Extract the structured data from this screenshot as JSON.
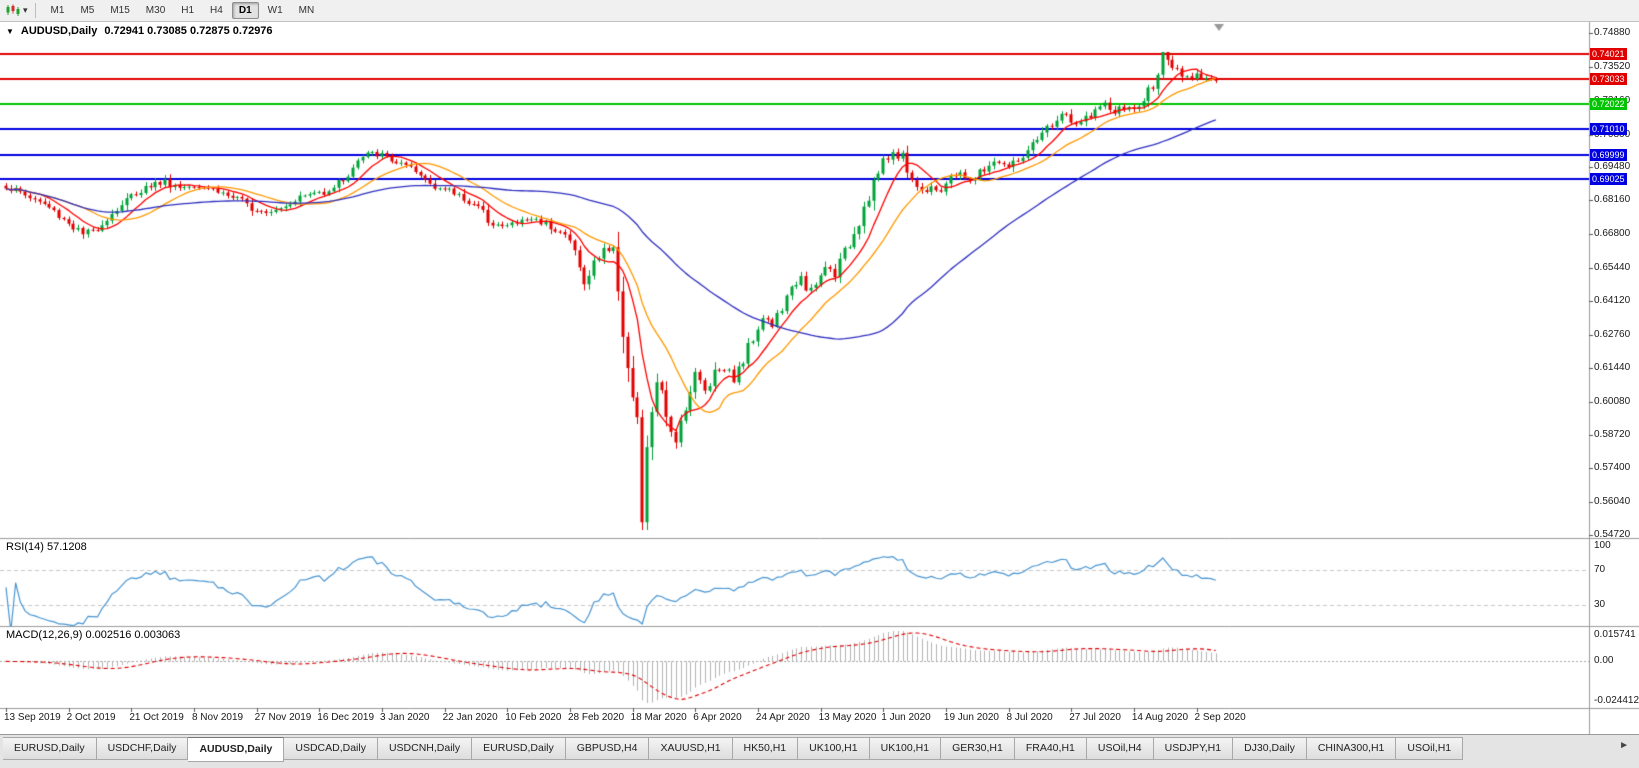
{
  "toolbar": {
    "timeframes": [
      "M1",
      "M5",
      "M15",
      "M30",
      "H1",
      "H4",
      "D1",
      "W1",
      "MN"
    ],
    "active_timeframe": "D1"
  },
  "icons": {
    "dropdown_caret": "▾",
    "collapse_triangle": "▼",
    "tab_scroll_right": "►"
  },
  "chart": {
    "title_symbol": "AUDUSD,Daily",
    "title_ohlc": "0.72941 0.73085 0.72875 0.72976"
  },
  "indicators": {
    "rsi_label": "RSI(14) 57.1208",
    "macd_label": "MACD(12,26,9) 0.002516 0.003063"
  },
  "tabs": {
    "active_index": 2,
    "items": [
      "EURUSD,Daily",
      "USDCHF,Daily",
      "AUDUSD,Daily",
      "USDCAD,Daily",
      "USDCNH,Daily",
      "EURUSD,Daily",
      "GBPUSD,H4",
      "XAUUSD,H1",
      "HK50,H1",
      "UK100,H1",
      "UK100,H1",
      "GER30,H1",
      "FRA40,H1",
      "USOil,H4",
      "USDJPY,H1",
      "DJ30,Daily",
      "CHINA300,H1",
      "USOil,H1"
    ]
  },
  "chart_data": {
    "type": "candlestick",
    "symbol": "AUDUSD",
    "period": "Daily",
    "current_bar": {
      "open": 0.72941,
      "high": 0.73085,
      "low": 0.72875,
      "close": 0.72976
    },
    "bar_count": 252,
    "bars_per_label": 13,
    "price_axis": {
      "top": 0.7488,
      "bottom": 0.5472,
      "ticks": [
        "0.74880",
        "0.73520",
        "0.72160",
        "0.70800",
        "0.69480",
        "0.68160",
        "0.66800",
        "0.65440",
        "0.64120",
        "0.62760",
        "0.61440",
        "0.60080",
        "0.58720",
        "0.57400",
        "0.56040",
        "0.54720"
      ]
    },
    "horizontal_levels": [
      {
        "price": 0.74021,
        "label": "0.74021",
        "color": "#e00000"
      },
      {
        "price": 0.73033,
        "label": "0.73033",
        "color": "#e00000"
      },
      {
        "price": 0.72022,
        "label": "0.72022",
        "color": "#00c400"
      },
      {
        "price": 0.7101,
        "label": "0.71010",
        "color": "#0000e0"
      },
      {
        "price": 0.69999,
        "label": "0.69999",
        "color": "#0000e0"
      },
      {
        "price": 0.69025,
        "label": "0.69025",
        "color": "#0000e0"
      }
    ],
    "moving_averages": [
      {
        "period": 8,
        "color": "#ff0000"
      },
      {
        "period": 17,
        "color": "#ff9900"
      },
      {
        "period": 55,
        "color": "#3030c0"
      }
    ],
    "candle_colors": {
      "up": "#00a339",
      "down": "#e30000"
    },
    "close_anchors": [
      [
        0,
        0.6872
      ],
      [
        4,
        0.6838
      ],
      [
        8,
        0.68
      ],
      [
        12,
        0.6742
      ],
      [
        16,
        0.6678
      ],
      [
        18,
        0.6692
      ],
      [
        21,
        0.6745
      ],
      [
        24,
        0.68
      ],
      [
        27,
        0.6848
      ],
      [
        30,
        0.6878
      ],
      [
        33,
        0.6892
      ],
      [
        36,
        0.6868
      ],
      [
        39,
        0.6882
      ],
      [
        42,
        0.687
      ],
      [
        45,
        0.6845
      ],
      [
        48,
        0.6818
      ],
      [
        51,
        0.6788
      ],
      [
        54,
        0.6775
      ],
      [
        57,
        0.679
      ],
      [
        60,
        0.6822
      ],
      [
        63,
        0.684
      ],
      [
        66,
        0.6852
      ],
      [
        69,
        0.6886
      ],
      [
        71,
        0.692
      ],
      [
        73,
        0.6972
      ],
      [
        75,
        0.7
      ],
      [
        77,
        0.7002
      ],
      [
        79,
        0.6988
      ],
      [
        82,
        0.6958
      ],
      [
        85,
        0.6925
      ],
      [
        88,
        0.6888
      ],
      [
        91,
        0.6858
      ],
      [
        94,
        0.6838
      ],
      [
        97,
        0.68
      ],
      [
        100,
        0.6742
      ],
      [
        103,
        0.6708
      ],
      [
        106,
        0.6728
      ],
      [
        109,
        0.6742
      ],
      [
        112,
        0.6726
      ],
      [
        115,
        0.6692
      ],
      [
        117,
        0.665
      ],
      [
        119,
        0.6572
      ],
      [
        120,
        0.647
      ],
      [
        122,
        0.656
      ],
      [
        124,
        0.6628
      ],
      [
        126,
        0.6602
      ],
      [
        127,
        0.65
      ],
      [
        128,
        0.631
      ],
      [
        129,
        0.615
      ],
      [
        130,
        0.6
      ],
      [
        131,
        0.587
      ],
      [
        132,
        0.553
      ],
      [
        133,
        0.576
      ],
      [
        134,
        0.5985
      ],
      [
        135,
        0.609
      ],
      [
        136,
        0.602
      ],
      [
        137,
        0.5925
      ],
      [
        139,
        0.586
      ],
      [
        141,
        0.6
      ],
      [
        143,
        0.612
      ],
      [
        145,
        0.6052
      ],
      [
        147,
        0.6132
      ],
      [
        149,
        0.6148
      ],
      [
        151,
        0.6098
      ],
      [
        153,
        0.6172
      ],
      [
        155,
        0.6272
      ],
      [
        157,
        0.6352
      ],
      [
        159,
        0.6312
      ],
      [
        161,
        0.6382
      ],
      [
        163,
        0.6452
      ],
      [
        165,
        0.6528
      ],
      [
        166,
        0.644
      ],
      [
        168,
        0.6468
      ],
      [
        170,
        0.6548
      ],
      [
        172,
        0.6522
      ],
      [
        174,
        0.6602
      ],
      [
        176,
        0.6692
      ],
      [
        178,
        0.6792
      ],
      [
        180,
        0.689
      ],
      [
        182,
        0.6962
      ],
      [
        184,
        0.7008
      ],
      [
        186,
        0.699
      ],
      [
        188,
        0.69
      ],
      [
        190,
        0.6852
      ],
      [
        192,
        0.6878
      ],
      [
        194,
        0.6856
      ],
      [
        196,
        0.6898
      ],
      [
        198,
        0.6936
      ],
      [
        200,
        0.6886
      ],
      [
        202,
        0.6926
      ],
      [
        204,
        0.6958
      ],
      [
        206,
        0.6972
      ],
      [
        208,
        0.6948
      ],
      [
        210,
        0.6978
      ],
      [
        212,
        0.7006
      ],
      [
        214,
        0.7052
      ],
      [
        216,
        0.7102
      ],
      [
        218,
        0.7142
      ],
      [
        220,
        0.7162
      ],
      [
        222,
        0.7108
      ],
      [
        224,
        0.7148
      ],
      [
        226,
        0.7178
      ],
      [
        228,
        0.7198
      ],
      [
        230,
        0.7168
      ],
      [
        232,
        0.7188
      ],
      [
        234,
        0.7178
      ],
      [
        236,
        0.7215
      ],
      [
        238,
        0.729
      ],
      [
        240,
        0.74
      ],
      [
        241,
        0.7358
      ],
      [
        243,
        0.733
      ],
      [
        245,
        0.7302
      ],
      [
        247,
        0.733
      ],
      [
        249,
        0.7308
      ],
      [
        251,
        0.7298
      ]
    ],
    "rsi": {
      "period": 14,
      "current": 57.1208,
      "levels": [
        70,
        30
      ],
      "axis_labels": [
        "100",
        "70",
        "30"
      ],
      "color": "#4a96d2"
    },
    "macd": {
      "fast": 12,
      "slow": 26,
      "signal_period": 9,
      "current": 0.002516,
      "current_signal": 0.003063,
      "axis_labels": [
        "0.015741",
        "0.00",
        "-0.024412"
      ],
      "histogram_color": "#b4b4b4",
      "signal_color": "#e00000"
    },
    "date_labels": [
      "13 Sep 2019",
      "2 Oct 2019",
      "21 Oct 2019",
      "8 Nov 2019",
      "27 Nov 2019",
      "16 Dec 2019",
      "3 Jan 2020",
      "22 Jan 2020",
      "10 Feb 2020",
      "28 Feb 2020",
      "18 Mar 2020",
      "6 Apr 2020",
      "24 Apr 2020",
      "13 May 2020",
      "1 Jun 2020",
      "19 Jun 2020",
      "8 Jul 2020",
      "27 Jul 2020",
      "14 Aug 2020",
      "2 Sep 2020"
    ]
  }
}
